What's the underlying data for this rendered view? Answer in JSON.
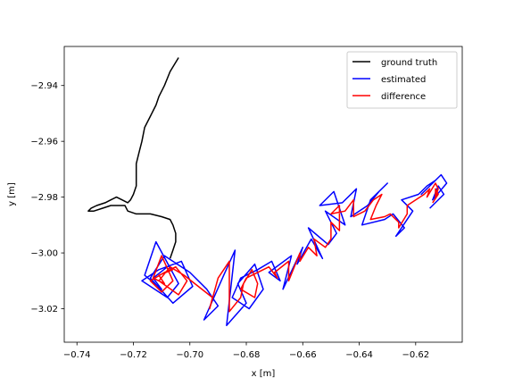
{
  "chart_data": {
    "type": "line",
    "title": "",
    "xlabel": "x [m]",
    "ylabel": "y [m]",
    "xlim": [
      -0.7445,
      -0.6035
    ],
    "ylim": [
      -3.032,
      -2.926
    ],
    "xticks": [
      -0.74,
      -0.72,
      -0.7,
      -0.68,
      -0.66,
      -0.64,
      -0.62
    ],
    "xtick_labels": [
      "−0.74",
      "−0.72",
      "−0.70",
      "−0.68",
      "−0.66",
      "−0.64",
      "−0.62"
    ],
    "yticks": [
      -2.94,
      -2.96,
      -2.98,
      -3.0,
      -3.02
    ],
    "ytick_labels": [
      "−2.94",
      "−2.96",
      "−2.98",
      "−3.00",
      "−3.02"
    ],
    "grid": false,
    "legend_position": "top-right",
    "series": [
      {
        "name": "ground truth",
        "color": "#000000",
        "x": [
          -0.704,
          -0.707,
          -0.709,
          -0.711,
          -0.712,
          -0.714,
          -0.716,
          -0.717,
          -0.718,
          -0.719,
          -0.719,
          -0.719,
          -0.72,
          -0.721,
          -0.722,
          -0.724,
          -0.726,
          -0.728,
          -0.73,
          -0.733,
          -0.735,
          -0.736,
          -0.734,
          -0.731,
          -0.728,
          -0.726,
          -0.723,
          -0.722,
          -0.719,
          -0.714,
          -0.71,
          -0.707,
          -0.706,
          -0.705,
          -0.705,
          -0.706,
          -0.707
        ],
        "y": [
          -2.93,
          -2.935,
          -2.94,
          -2.944,
          -2.947,
          -2.951,
          -2.955,
          -2.96,
          -2.964,
          -2.968,
          -2.972,
          -2.976,
          -2.979,
          -2.981,
          -2.982,
          -2.981,
          -2.98,
          -2.981,
          -2.982,
          -2.983,
          -2.984,
          -2.985,
          -2.985,
          -2.984,
          -2.983,
          -2.983,
          -2.983,
          -2.985,
          -2.986,
          -2.986,
          -2.987,
          -2.988,
          -2.99,
          -2.993,
          -2.996,
          -2.999,
          -3.002
        ]
      },
      {
        "name": "estimated",
        "color": "#0000ff",
        "x": [
          -0.708,
          -0.713,
          -0.71,
          -0.716,
          -0.712,
          -0.704,
          -0.708,
          -0.717,
          -0.711,
          -0.703,
          -0.699,
          -0.706,
          -0.714,
          -0.709,
          -0.7,
          -0.694,
          -0.69,
          -0.695,
          -0.688,
          -0.684,
          -0.687,
          -0.68,
          -0.683,
          -0.677,
          -0.674,
          -0.679,
          -0.685,
          -0.682,
          -0.676,
          -0.671,
          -0.668,
          -0.672,
          -0.664,
          -0.667,
          -0.66,
          -0.662,
          -0.657,
          -0.653,
          -0.658,
          -0.651,
          -0.648,
          -0.652,
          -0.645,
          -0.649,
          -0.654,
          -0.646,
          -0.641,
          -0.643,
          -0.637,
          -0.633,
          -0.63,
          -0.636,
          -0.639,
          -0.631,
          -0.628,
          -0.624,
          -0.627,
          -0.621,
          -0.625,
          -0.619,
          -0.616,
          -0.613,
          -0.618,
          -0.611,
          -0.609,
          -0.614,
          -0.612,
          -0.61,
          -0.615
        ],
        "y": [
          -3.005,
          -3.009,
          -3.013,
          -3.008,
          -2.996,
          -3.011,
          -3.016,
          -3.01,
          -3.006,
          -3.003,
          -3.012,
          -3.018,
          -3.009,
          -3.001,
          -3.007,
          -3.013,
          -3.019,
          -3.024,
          -3.008,
          -2.999,
          -3.026,
          -3.018,
          -3.011,
          -3.004,
          -3.013,
          -3.02,
          -3.016,
          -3.009,
          -3.006,
          -3.003,
          -3.01,
          -3.007,
          -3.001,
          -3.013,
          -2.998,
          -3.004,
          -2.995,
          -3.002,
          -2.991,
          -2.997,
          -2.993,
          -2.985,
          -2.99,
          -2.978,
          -2.983,
          -2.982,
          -2.977,
          -2.987,
          -2.983,
          -2.978,
          -2.975,
          -2.981,
          -2.99,
          -2.988,
          -2.986,
          -2.991,
          -2.994,
          -2.985,
          -2.981,
          -2.979,
          -2.976,
          -2.974,
          -2.979,
          -2.972,
          -2.975,
          -2.981,
          -2.976,
          -2.979,
          -2.984
        ]
      },
      {
        "name": "difference",
        "color": "#ff0000",
        "x": [
          -0.706,
          -0.711,
          -0.709,
          -0.713,
          -0.71,
          -0.706,
          -0.71,
          -0.714,
          -0.709,
          -0.705,
          -0.701,
          -0.704,
          -0.711,
          -0.707,
          -0.702,
          -0.697,
          -0.692,
          -0.693,
          -0.69,
          -0.686,
          -0.686,
          -0.682,
          -0.681,
          -0.678,
          -0.676,
          -0.677,
          -0.682,
          -0.68,
          -0.676,
          -0.672,
          -0.669,
          -0.67,
          -0.665,
          -0.665,
          -0.661,
          -0.661,
          -0.658,
          -0.655,
          -0.656,
          -0.652,
          -0.65,
          -0.65,
          -0.647,
          -0.647,
          -0.65,
          -0.645,
          -0.642,
          -0.642,
          -0.638,
          -0.635,
          -0.632,
          -0.634,
          -0.636,
          -0.631,
          -0.629,
          -0.626,
          -0.626,
          -0.623,
          -0.623,
          -0.62,
          -0.617,
          -0.615,
          -0.616,
          -0.613,
          -0.612,
          -0.613,
          -0.613,
          -0.612,
          -0.614
        ],
        "y": [
          -3.006,
          -3.008,
          -3.011,
          -3.009,
          -3.001,
          -3.01,
          -3.014,
          -3.01,
          -3.007,
          -3.005,
          -3.01,
          -3.015,
          -3.01,
          -3.005,
          -3.008,
          -3.012,
          -3.016,
          -3.02,
          -3.009,
          -3.003,
          -3.021,
          -3.016,
          -3.011,
          -3.006,
          -3.011,
          -3.016,
          -3.013,
          -3.009,
          -3.007,
          -3.005,
          -3.009,
          -3.007,
          -3.003,
          -3.01,
          -3.0,
          -3.003,
          -2.998,
          -3.001,
          -2.995,
          -2.998,
          -2.995,
          -2.989,
          -2.992,
          -2.983,
          -2.986,
          -2.985,
          -2.981,
          -2.987,
          -2.985,
          -2.981,
          -2.979,
          -2.983,
          -2.988,
          -2.987,
          -2.986,
          -2.989,
          -2.991,
          -2.986,
          -2.983,
          -2.981,
          -2.979,
          -2.977,
          -2.98,
          -2.975,
          -2.977,
          -2.98,
          -2.977,
          -2.979,
          -2.982
        ]
      }
    ]
  }
}
